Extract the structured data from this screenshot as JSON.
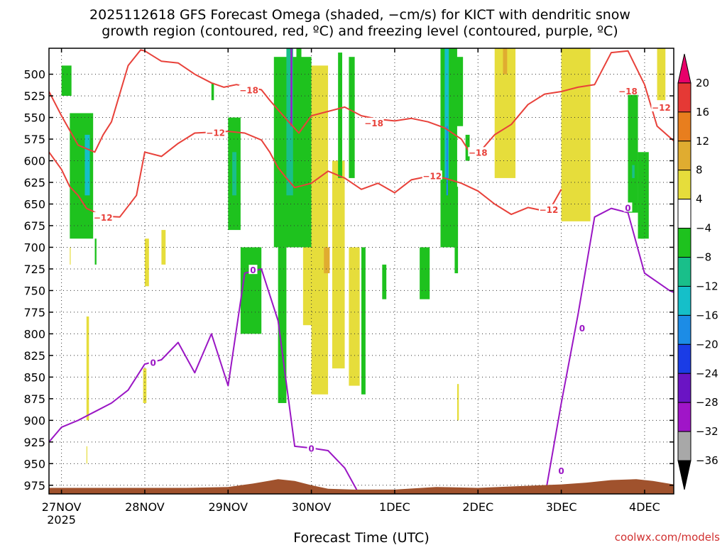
{
  "chart_data": {
    "type": "heatmap",
    "title_line1": "2025112618 GFS Forecast Omega (shaded, −cm/s) for KICT with dendritic snow",
    "title_line2": "growth region (contoured, red, ºC) and freezing level (contoured, purple, ºC)",
    "xlabel": "Forecast Time (UTC)",
    "credit": "coolwx.com/models",
    "y_axis": {
      "ticks": [
        500,
        525,
        550,
        575,
        600,
        625,
        650,
        675,
        700,
        725,
        750,
        775,
        800,
        825,
        850,
        875,
        900,
        925,
        950,
        975
      ],
      "ylim": [
        470,
        985
      ],
      "inverted": true
    },
    "x_axis": {
      "xlim": [
        -0.15,
        7.35
      ],
      "ticks": [
        {
          "pos": 0,
          "label": "27NOV",
          "sub": "2025"
        },
        {
          "pos": 1,
          "label": "28NOV",
          "sub": ""
        },
        {
          "pos": 2,
          "label": "29NOV",
          "sub": ""
        },
        {
          "pos": 3,
          "label": "30NOV",
          "sub": ""
        },
        {
          "pos": 4,
          "label": "1DEC",
          "sub": ""
        },
        {
          "pos": 5,
          "label": "2DEC",
          "sub": ""
        },
        {
          "pos": 6,
          "label": "3DEC",
          "sub": ""
        },
        {
          "pos": 7,
          "label": "4DEC",
          "sub": ""
        }
      ]
    },
    "colorbar": {
      "labels": [
        "20",
        "16",
        "12",
        "8",
        "4",
        "−4",
        "−8",
        "−12",
        "−16",
        "−20",
        "−24",
        "−28",
        "−32",
        "−36"
      ],
      "colors": [
        "#e8006a",
        "#e53935",
        "#e87e1e",
        "#e0ac30",
        "#e6dd3b",
        "#ffffff",
        "#1ec21e",
        "#19bf8a",
        "#15bfc9",
        "#1c8ce6",
        "#1a3ce6",
        "#6a14c4",
        "#a015c8",
        "#a8a8a8",
        "#000000"
      ],
      "label_tops": [
        20,
        16,
        12,
        8,
        4,
        -4,
        -8,
        -12,
        -16,
        -20,
        -24,
        -28,
        -32,
        -36
      ]
    },
    "series": [
      {
        "name": "contour -18 C",
        "level_label": "−18",
        "color": "#e8413a",
        "x": [
          -0.15,
          0.0,
          0.2,
          0.4,
          0.5,
          0.6,
          0.8,
          0.95,
          1.0,
          1.2,
          1.4,
          1.6,
          1.8,
          1.95,
          2.1,
          2.3,
          2.4,
          2.5,
          2.7,
          2.85,
          3.0,
          3.2,
          3.4,
          3.6,
          3.8,
          4.0,
          4.2,
          4.4,
          4.6,
          4.8,
          4.9,
          5.0,
          5.2,
          5.4,
          5.6,
          5.8,
          6.0,
          6.2,
          6.4,
          6.6,
          6.8,
          7.0,
          7.15,
          7.35
        ],
        "y": [
          520,
          548,
          582,
          590,
          570,
          555,
          490,
          472,
          473,
          485,
          487,
          500,
          510,
          515,
          512,
          516,
          518,
          530,
          552,
          568,
          548,
          543,
          538,
          548,
          552,
          554,
          551,
          555,
          562,
          575,
          590,
          592,
          570,
          558,
          535,
          523,
          520,
          515,
          512,
          475,
          473,
          512,
          560,
          577
        ]
      },
      {
        "name": "contour -12 C",
        "level_label": "−12",
        "color": "#e8413a",
        "x": [
          -0.15,
          0.0,
          0.1,
          0.2,
          0.3,
          0.5,
          0.7,
          0.9,
          1.0,
          1.2,
          1.4,
          1.6,
          1.8,
          2.0,
          2.2,
          2.4,
          2.5,
          2.6,
          2.7,
          2.8,
          3.0,
          3.2,
          3.4,
          3.6,
          3.8,
          4.0,
          4.2,
          4.4,
          4.6,
          4.8,
          5.0,
          5.2,
          5.4,
          5.6,
          5.8,
          5.9,
          6.0
        ],
        "y": [
          590,
          610,
          630,
          640,
          655,
          664,
          665,
          640,
          590,
          595,
          580,
          568,
          567,
          566,
          568,
          576,
          590,
          608,
          620,
          631,
          626,
          612,
          620,
          633,
          626,
          637,
          622,
          618,
          620,
          626,
          635,
          650,
          662,
          654,
          658,
          650,
          633
        ]
      },
      {
        "name": "contour 0 C (freezing level)",
        "level_label": "0",
        "color": "#9a16c4",
        "x": [
          -0.15,
          0.0,
          0.2,
          0.4,
          0.6,
          0.8,
          1.0,
          1.2,
          1.4,
          1.6,
          1.8,
          2.0,
          2.2,
          2.4,
          2.6,
          2.8,
          3.0,
          3.2,
          3.4,
          3.6,
          3.8,
          4.0,
          4.2,
          4.4,
          4.6,
          4.8,
          5.0,
          5.2,
          5.4,
          5.6,
          5.8,
          6.0,
          6.2,
          6.4,
          6.6,
          6.8,
          7.0,
          7.15,
          7.3,
          7.35
        ],
        "y": [
          925,
          908,
          900,
          890,
          880,
          865,
          835,
          830,
          810,
          845,
          800,
          860,
          730,
          725,
          785,
          930,
          932,
          935,
          955,
          990,
          990,
          990,
          990,
          990,
          990,
          990,
          990,
          990,
          990,
          990,
          990,
          880,
          778,
          665,
          655,
          660,
          730,
          740,
          750,
          752
        ]
      }
    ],
    "contour_labels": [
      {
        "text": "−18",
        "x": 2.25,
        "y": 518
      },
      {
        "text": "−18",
        "x": 3.75,
        "y": 556
      },
      {
        "text": "−18",
        "x": 5.0,
        "y": 590
      },
      {
        "text": "−18",
        "x": 6.8,
        "y": 519
      },
      {
        "text": "−12",
        "x": 7.2,
        "y": 538
      },
      {
        "text": "−12",
        "x": 0.5,
        "y": 665
      },
      {
        "text": "−12",
        "x": 1.85,
        "y": 567
      },
      {
        "text": "−12",
        "x": 4.45,
        "y": 617
      },
      {
        "text": "−12",
        "x": 5.85,
        "y": 656
      },
      {
        "text": "0",
        "x": 1.1,
        "y": 833
      },
      {
        "text": "0",
        "x": 2.3,
        "y": 726
      },
      {
        "text": "0",
        "x": 3.0,
        "y": 932
      },
      {
        "text": "0",
        "x": 6.25,
        "y": 793
      },
      {
        "text": "0",
        "x": 6.0,
        "y": 958
      },
      {
        "text": "0",
        "x": 6.8,
        "y": 654
      }
    ],
    "omega_regions": [
      {
        "x0": 0.1,
        "x1": 0.38,
        "p0": 545,
        "p1": 690,
        "value": -6
      },
      {
        "x0": 0.28,
        "x1": 0.34,
        "p0": 570,
        "p1": 640,
        "value": -13
      },
      {
        "x0": 0.0,
        "x1": 0.12,
        "p0": 490,
        "p1": 525,
        "value": -6
      },
      {
        "x0": 0.4,
        "x1": 0.42,
        "p0": 690,
        "p1": 720,
        "value": -6
      },
      {
        "x0": 1.0,
        "x1": 1.05,
        "p0": 690,
        "p1": 745,
        "value": 6
      },
      {
        "x0": 0.98,
        "x1": 1.02,
        "p0": 840,
        "p1": 880,
        "value": 6
      },
      {
        "x0": 0.3,
        "x1": 0.33,
        "p0": 780,
        "p1": 900,
        "value": 6
      },
      {
        "x0": 0.1,
        "x1": 0.11,
        "p0": 700,
        "p1": 720,
        "value": 6
      },
      {
        "x0": 1.2,
        "x1": 1.25,
        "p0": 680,
        "p1": 720,
        "value": 6
      },
      {
        "x0": 0.3,
        "x1": 0.31,
        "p0": 930,
        "p1": 950,
        "value": 6
      },
      {
        "x0": 2.0,
        "x1": 2.15,
        "p0": 550,
        "p1": 680,
        "value": -6
      },
      {
        "x0": 2.05,
        "x1": 2.1,
        "p0": 590,
        "p1": 640,
        "value": -10
      },
      {
        "x0": 2.15,
        "x1": 2.4,
        "p0": 700,
        "p1": 800,
        "value": -6
      },
      {
        "x0": 1.8,
        "x1": 1.83,
        "p0": 510,
        "p1": 530,
        "value": -6
      },
      {
        "x0": 2.55,
        "x1": 3.0,
        "p0": 480,
        "p1": 700,
        "value": -6
      },
      {
        "x0": 2.6,
        "x1": 2.7,
        "p0": 700,
        "p1": 880,
        "value": -6
      },
      {
        "x0": 2.7,
        "x1": 2.78,
        "p0": 470,
        "p1": 640,
        "value": -10
      },
      {
        "x0": 2.75,
        "x1": 2.77,
        "p0": 470,
        "p1": 560,
        "value": -32
      },
      {
        "x0": 2.82,
        "x1": 2.88,
        "p0": 470,
        "p1": 560,
        "value": -6
      },
      {
        "x0": 3.0,
        "x1": 3.2,
        "p0": 490,
        "p1": 870,
        "value": 6
      },
      {
        "x0": 3.1,
        "x1": 3.22,
        "p0": 700,
        "p1": 730,
        "value": 9
      },
      {
        "x0": 2.9,
        "x1": 3.15,
        "p0": 700,
        "p1": 790,
        "value": 6
      },
      {
        "x0": 3.25,
        "x1": 3.4,
        "p0": 600,
        "p1": 840,
        "value": 6
      },
      {
        "x0": 3.32,
        "x1": 3.37,
        "p0": 475,
        "p1": 620,
        "value": -6
      },
      {
        "x0": 3.45,
        "x1": 3.52,
        "p0": 480,
        "p1": 620,
        "value": -6
      },
      {
        "x0": 3.6,
        "x1": 3.65,
        "p0": 700,
        "p1": 870,
        "value": -6
      },
      {
        "x0": 3.45,
        "x1": 3.58,
        "p0": 700,
        "p1": 860,
        "value": 6
      },
      {
        "x0": 3.85,
        "x1": 3.9,
        "p0": 720,
        "p1": 760,
        "value": -6
      },
      {
        "x0": 4.3,
        "x1": 4.42,
        "p0": 700,
        "p1": 760,
        "value": -6
      },
      {
        "x0": 4.55,
        "x1": 4.75,
        "p0": 470,
        "p1": 700,
        "value": -6
      },
      {
        "x0": 4.6,
        "x1": 4.65,
        "p0": 470,
        "p1": 620,
        "value": -14
      },
      {
        "x0": 4.62,
        "x1": 4.64,
        "p0": 560,
        "p1": 640,
        "value": -18
      },
      {
        "x0": 4.7,
        "x1": 4.82,
        "p0": 480,
        "p1": 560,
        "value": -6
      },
      {
        "x0": 4.85,
        "x1": 4.9,
        "p0": 570,
        "p1": 600,
        "value": -6
      },
      {
        "x0": 4.72,
        "x1": 4.76,
        "p0": 630,
        "p1": 730,
        "value": -6
      },
      {
        "x0": 4.75,
        "x1": 4.77,
        "p0": 858,
        "p1": 900,
        "value": 6
      },
      {
        "x0": 5.2,
        "x1": 5.45,
        "p0": 470,
        "p1": 620,
        "value": 6
      },
      {
        "x0": 5.3,
        "x1": 5.35,
        "p0": 470,
        "p1": 500,
        "value": 10
      },
      {
        "x0": 6.0,
        "x1": 6.35,
        "p0": 470,
        "p1": 670,
        "value": 6
      },
      {
        "x0": 6.8,
        "x1": 6.92,
        "p0": 520,
        "p1": 660,
        "value": -6
      },
      {
        "x0": 6.92,
        "x1": 7.05,
        "p0": 590,
        "p1": 690,
        "value": -6
      },
      {
        "x0": 6.85,
        "x1": 6.88,
        "p0": 605,
        "p1": 620,
        "value": -12
      },
      {
        "x0": 6.95,
        "x1": 7.0,
        "p0": 660,
        "p1": 690,
        "value": -6
      },
      {
        "x0": 7.15,
        "x1": 7.25,
        "p0": 470,
        "p1": 530,
        "value": 6
      }
    ],
    "terrain": {
      "color": "#a0522d",
      "x": [
        -0.15,
        0.0,
        0.5,
        1.0,
        1.5,
        2.0,
        2.3,
        2.6,
        2.8,
        3.0,
        3.2,
        3.5,
        4.0,
        4.5,
        5.0,
        5.5,
        6.0,
        6.3,
        6.6,
        6.9,
        7.1,
        7.35
      ],
      "p": [
        978,
        978,
        978,
        978,
        978,
        977,
        973,
        968,
        970,
        975,
        979,
        980,
        980,
        977,
        978,
        976,
        974,
        972,
        969,
        968,
        970,
        974
      ]
    }
  }
}
